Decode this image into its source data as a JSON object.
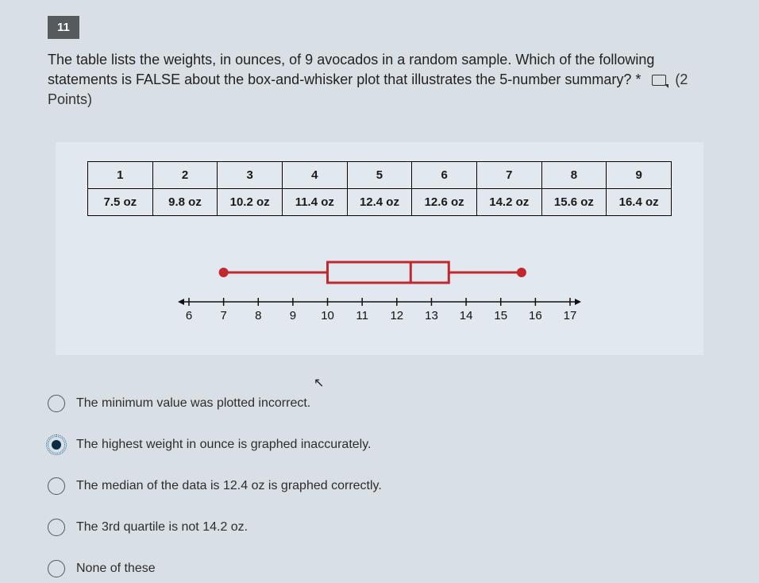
{
  "question": {
    "number": "11",
    "text": "The table lists the weights, in ounces, of 9 avocados in a random sample. Which of the following statements is FALSE about the box-and-whisker plot that illustrates the 5-number summary? *",
    "points": "(2 Points)"
  },
  "table": {
    "headers": [
      "1",
      "2",
      "3",
      "4",
      "5",
      "6",
      "7",
      "8",
      "9"
    ],
    "values": [
      "7.5 oz",
      "9.8 oz",
      "10.2 oz",
      "11.4 oz",
      "12.4 oz",
      "12.6 oz",
      "14.2 oz",
      "15.6 oz",
      "16.4 oz"
    ]
  },
  "boxplot": {
    "axis_min": 6,
    "axis_max": 17,
    "ticks": [
      6,
      7,
      8,
      9,
      10,
      11,
      12,
      13,
      14,
      15,
      16,
      17
    ],
    "min": 7,
    "q1": 10,
    "median": 12.4,
    "q3": 13.5,
    "max": 15.6,
    "stroke": "#c1272d",
    "stroke_width": 3,
    "dot_radius": 6,
    "axis_color": "#111",
    "bg": "#e1e8ee"
  },
  "options": [
    {
      "label": "The minimum value was plotted incorrect.",
      "selected": false
    },
    {
      "label": "The highest weight in ounce is graphed inaccurately.",
      "selected": true
    },
    {
      "label": "The median of the data is 12.4 oz is graphed correctly.",
      "selected": false
    },
    {
      "label": "The 3rd quartile is not 14.2 oz.",
      "selected": false
    },
    {
      "label": "None of these",
      "selected": false
    }
  ]
}
